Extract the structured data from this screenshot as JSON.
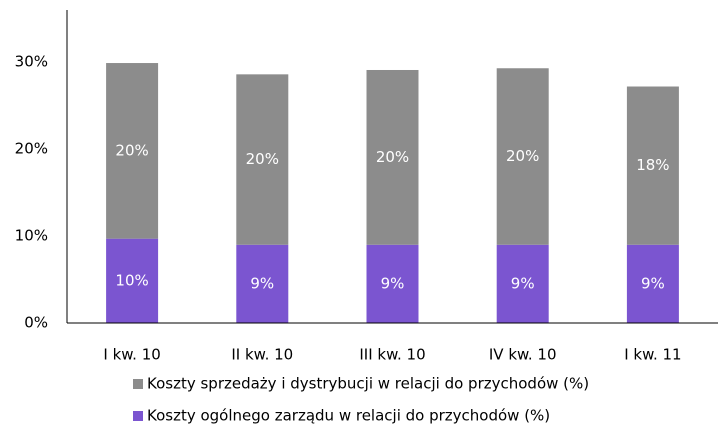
{
  "chart_data": {
    "type": "stacked_bar",
    "categories": [
      "I kw. 10",
      "II kw. 10",
      "III kw. 10",
      "IV kw. 10",
      "I kw. 11"
    ],
    "series": [
      {
        "name": "Koszty sprzedaży i dystrybucji w relacji do przychodów (%)",
        "color": "#8c8c8c",
        "values": [
          20.2,
          19.6,
          20.1,
          20.3,
          18.2
        ],
        "value_labels": [
          "20%",
          "20%",
          "20%",
          "20%",
          "18%"
        ]
      },
      {
        "name": "Koszty ogólnego zarządu w relacji do przychodów (%)",
        "color": "#7b55d0",
        "values": [
          9.7,
          9.0,
          9.0,
          9.0,
          9.0
        ],
        "value_labels": [
          "10%",
          "9%",
          "9%",
          "9%",
          "9%"
        ]
      }
    ],
    "ylim": [
      0,
      36
    ],
    "yticks": [
      {
        "value": 0,
        "label": "0%"
      },
      {
        "value": 10,
        "label": "10%"
      },
      {
        "value": 20,
        "label": "20%"
      },
      {
        "value": 30,
        "label": "30%"
      }
    ],
    "grid": false
  }
}
